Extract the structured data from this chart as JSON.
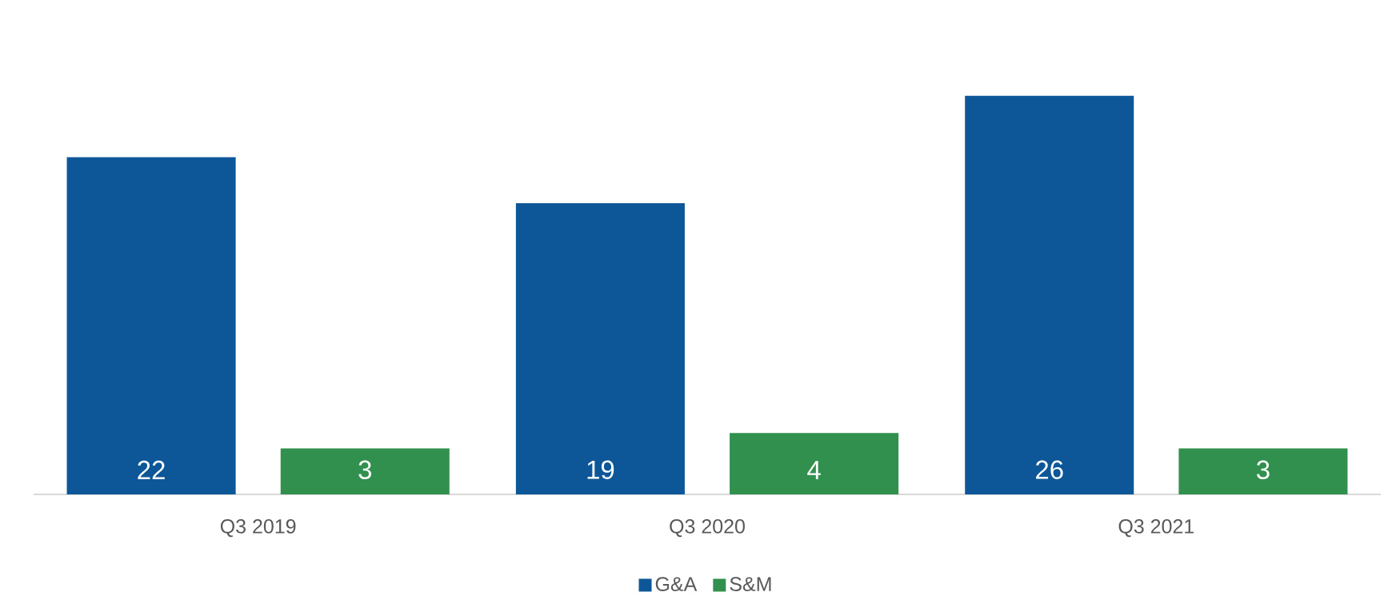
{
  "chart_data": {
    "type": "bar",
    "categories": [
      "Q3 2019",
      "Q3 2020",
      "Q3 2021"
    ],
    "series": [
      {
        "name": "G&A",
        "color": "#0d5697",
        "values": [
          22,
          19,
          26
        ]
      },
      {
        "name": "S&M",
        "color": "#32904f",
        "values": [
          3,
          4,
          3
        ]
      }
    ],
    "data_labels": true,
    "legend": "bottom"
  }
}
